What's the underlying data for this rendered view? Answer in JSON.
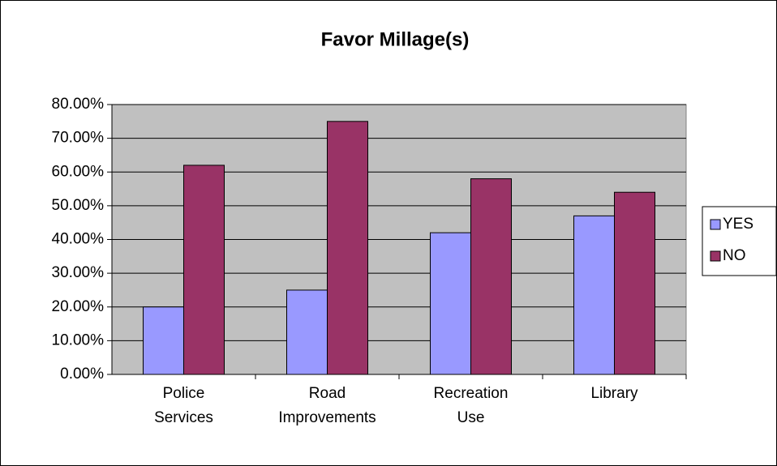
{
  "chart_data": {
    "type": "bar",
    "title": "Favor Millage(s)",
    "categories": [
      "Police Services",
      "Road Improvements",
      "Recreation Use",
      "Library"
    ],
    "series": [
      {
        "name": "YES",
        "color": "#9999ff",
        "values": [
          20,
          25,
          42,
          47
        ]
      },
      {
        "name": "NO",
        "color": "#993366",
        "values": [
          62,
          75,
          58,
          54
        ]
      }
    ],
    "ylim": [
      0,
      80
    ],
    "yticks": [
      {
        "value": 0,
        "label": "0.00%"
      },
      {
        "value": 10,
        "label": "10.00%"
      },
      {
        "value": 20,
        "label": "20.00%"
      },
      {
        "value": 30,
        "label": "30.00%"
      },
      {
        "value": 40,
        "label": "40.00%"
      },
      {
        "value": 50,
        "label": "50.00%"
      },
      {
        "value": 60,
        "label": "60.00%"
      },
      {
        "value": 70,
        "label": "70.00%"
      },
      {
        "value": 80,
        "label": "80.00%"
      }
    ],
    "grid": true,
    "legend": "right"
  }
}
